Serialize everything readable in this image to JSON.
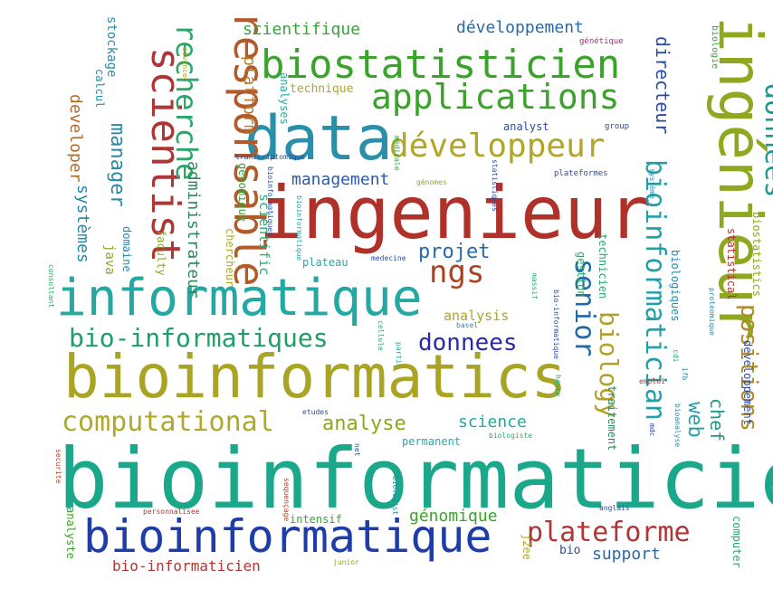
{
  "words": [
    {
      "id": "bioinformaticien",
      "text": "bioinformaticien",
      "color": "#1ba88a"
    },
    {
      "id": "bioinformatics",
      "text": "bioinformatics",
      "color": "#a9a424"
    },
    {
      "id": "ingenieur",
      "text": "ingenieur",
      "color": "#b0312a"
    },
    {
      "id": "ingenieur-accent",
      "text": "ingénieur",
      "color": "#8ea91f"
    },
    {
      "id": "informatique",
      "text": "informatique",
      "color": "#24a8a2"
    },
    {
      "id": "bioinformatique",
      "text": "bioinformatique",
      "color": "#1f3da8"
    },
    {
      "id": "data",
      "text": "data",
      "color": "#2a8fa8"
    },
    {
      "id": "biostatisticien",
      "text": "biostatisticien",
      "color": "#3aa32a"
    },
    {
      "id": "responsable",
      "text": "responsable",
      "color": "#b45a2a"
    },
    {
      "id": "scientist",
      "text": "scientist",
      "color": "#b03535"
    },
    {
      "id": "applications",
      "text": "applications",
      "color": "#3aa32a"
    },
    {
      "id": "developpeur",
      "text": "développeur",
      "color": "#b1a628"
    },
    {
      "id": "bio-informatiques",
      "text": "bio-informatiques",
      "color": "#1f9e6a"
    },
    {
      "id": "computational",
      "text": "computational",
      "color": "#b0a82a"
    },
    {
      "id": "plateforme",
      "text": "plateforme",
      "color": "#b03535"
    },
    {
      "id": "recherche",
      "text": "recherche",
      "color": "#2aa86a"
    },
    {
      "id": "donnees-accent",
      "text": "données",
      "color": "#1a9a8a"
    },
    {
      "id": "bioinformatician",
      "text": "bioinformatician",
      "color": "#22a0a8"
    },
    {
      "id": "ngs",
      "text": "ngs",
      "color": "#b04020"
    },
    {
      "id": "biology",
      "text": "biology",
      "color": "#b2a02a"
    },
    {
      "id": "senior",
      "text": "senior",
      "color": "#1f6aa8"
    },
    {
      "id": "donnees",
      "text": "donnees",
      "color": "#2a2aa8"
    },
    {
      "id": "projet",
      "text": "projet",
      "color": "#2a6aa8"
    },
    {
      "id": "positions",
      "text": "positions",
      "color": "#b08a2a"
    },
    {
      "id": "analyse",
      "text": "analyse",
      "color": "#8aa81f"
    },
    {
      "id": "manager",
      "text": "manager",
      "color": "#2a8aa8"
    },
    {
      "id": "web",
      "text": "web",
      "color": "#24a0a8"
    },
    {
      "id": "science",
      "text": "science",
      "color": "#1fa8a8"
    },
    {
      "id": "management",
      "text": "management",
      "color": "#2a5aa8"
    },
    {
      "id": "scientifique",
      "text": "scientifique",
      "color": "#3aa33a"
    },
    {
      "id": "developpement-accent",
      "text": "développement",
      "color": "#2a6aa8"
    },
    {
      "id": "directeur",
      "text": "directeur",
      "color": "#2a4aa8"
    },
    {
      "id": "chef",
      "text": "chef",
      "color": "#1f9a8a"
    },
    {
      "id": "developer",
      "text": "developer",
      "color": "#b06a2a"
    },
    {
      "id": "systemes",
      "text": "systèmes",
      "color": "#1f8aa8"
    },
    {
      "id": "administrateur",
      "text": "administrateur",
      "color": "#2a8a5a"
    },
    {
      "id": "platform",
      "text": "platform",
      "color": "#b07a2a"
    },
    {
      "id": "genomique",
      "text": "génomique",
      "color": "#3aa32a"
    },
    {
      "id": "support",
      "text": "support",
      "color": "#2a6aa8"
    },
    {
      "id": "bio-informaticien",
      "text": "bio-informaticien",
      "color": "#b03535"
    },
    {
      "id": "analysis",
      "text": "analysis",
      "color": "#a8a82a"
    },
    {
      "id": "scientific",
      "text": "scientific",
      "color": "#2aa86a"
    },
    {
      "id": "java",
      "text": "java",
      "color": "#8aa82a"
    },
    {
      "id": "stockage",
      "text": "stockage",
      "color": "#2a8aa8"
    },
    {
      "id": "calcul",
      "text": "calcul",
      "color": "#2a8aa8"
    },
    {
      "id": "domaine",
      "text": "domaine",
      "color": "#2a8aa8"
    },
    {
      "id": "faculty",
      "text": "faculty",
      "color": "#8aa82a"
    },
    {
      "id": "chercheur",
      "text": "chercheur",
      "color": "#a8a82a"
    },
    {
      "id": "genomique-plain",
      "text": "genomique",
      "color": "#3aa33a"
    },
    {
      "id": "analyses",
      "text": "analyses",
      "color": "#2aa8a8"
    },
    {
      "id": "technique",
      "text": "technique",
      "color": "#a8a82a"
    },
    {
      "id": "analyst",
      "text": "analyst",
      "color": "#2a4aa8"
    },
    {
      "id": "plateau",
      "text": "plateau",
      "color": "#2aa8a8"
    },
    {
      "id": "gestion",
      "text": "gestion",
      "color": "#2aa86a"
    },
    {
      "id": "technicien",
      "text": "technicien",
      "color": "#2aa86a"
    },
    {
      "id": "statistical",
      "text": "statistical",
      "color": "#b03535"
    },
    {
      "id": "biostatistics",
      "text": "biostatistics",
      "color": "#8aa82a"
    },
    {
      "id": "biologies",
      "text": "biologiques",
      "color": "#2a8aa8"
    },
    {
      "id": "traitement",
      "text": "traitement",
      "color": "#2a8a5a"
    },
    {
      "id": "developpement",
      "text": "developpement",
      "color": "#2a4aa8"
    },
    {
      "id": "permanent",
      "text": "permanent",
      "color": "#2aa8a8"
    },
    {
      "id": "intensif",
      "text": "intensif",
      "color": "#3aa33a"
    },
    {
      "id": "j2ee",
      "text": "j2ee",
      "color": "#a8a82a"
    },
    {
      "id": "bio",
      "text": "bio",
      "color": "#2a4aa8"
    },
    {
      "id": "computer",
      "text": "computer",
      "color": "#2aa86a"
    },
    {
      "id": "analyste",
      "text": "analyste",
      "color": "#3aa32a"
    },
    {
      "id": "biologie",
      "text": "biologie",
      "color": "#3aa33a"
    },
    {
      "id": "group",
      "text": "group",
      "color": "#2a4aa8"
    },
    {
      "id": "genetique",
      "text": "génétique",
      "color": "#a82a8a"
    },
    {
      "id": "advanced",
      "text": "advanced",
      "color": "#a8a82a"
    },
    {
      "id": "medicale",
      "text": "médicale",
      "color": "#3aa33a"
    },
    {
      "id": "plateformes",
      "text": "plateformes",
      "color": "#2a4aa8"
    },
    {
      "id": "genomes",
      "text": "génomes",
      "color": "#8aa82a"
    },
    {
      "id": "statistiques",
      "text": "statistiques",
      "color": "#2a4aa8"
    },
    {
      "id": "transcriptomique",
      "text": "transcriptomique",
      "color": "#2a4aa8"
    },
    {
      "id": "bioinformatiques",
      "text": "bioinformatiques",
      "color": "#2a4aa8"
    },
    {
      "id": "bioinformatique-small",
      "text": "bioinformatique",
      "color": "#2aa8a8"
    },
    {
      "id": "systeme",
      "text": "système",
      "color": "#2a8aa8"
    },
    {
      "id": "medecine",
      "text": "medecine",
      "color": "#2a4aa8"
    },
    {
      "id": "consultant",
      "text": "consultant",
      "color": "#2aa86a"
    },
    {
      "id": "massif",
      "text": "massif",
      "color": "#2aa86a"
    },
    {
      "id": "basel",
      "text": "basel",
      "color": "#2a8aa8"
    },
    {
      "id": "cellule",
      "text": "cellule",
      "color": "#2aa86a"
    },
    {
      "id": "partir",
      "text": "partir",
      "color": "#2aa8a8"
    },
    {
      "id": "bio-informatique",
      "text": "bio-informatique",
      "color": "#2a4aa8"
    },
    {
      "id": "proteomique",
      "text": "proteomique",
      "color": "#2a8aa8"
    },
    {
      "id": "cdi",
      "text": "cdi",
      "color": "#2aa86a"
    },
    {
      "id": "ifb",
      "text": "ifb",
      "color": "#2a8aa8"
    },
    {
      "id": "haute",
      "text": "haute",
      "color": "#2aa86a"
    },
    {
      "id": "emploi",
      "text": "emploi",
      "color": "#b03535"
    },
    {
      "id": "bioanalyse",
      "text": "bioanalyse",
      "color": "#2a8aa8"
    },
    {
      "id": "mdc",
      "text": "mdc",
      "color": "#2a4aa8"
    },
    {
      "id": "etudes",
      "text": "etudes",
      "color": "#2a4aa8"
    },
    {
      "id": "biologiste",
      "text": "biologiste",
      "color": "#2aa86a"
    },
    {
      "id": "securite",
      "text": "securite",
      "color": "#b04020"
    },
    {
      "id": "net",
      "text": "net",
      "color": "#2a4aa8"
    },
    {
      "id": "sequencage",
      "text": "sequençage",
      "color": "#b04020"
    },
    {
      "id": "biologist",
      "text": "biologist",
      "color": "#2a8aa8"
    },
    {
      "id": "personnalisee",
      "text": "personnalisee",
      "color": "#b03535"
    },
    {
      "id": "anglais",
      "text": "anglais",
      "color": "#2a4aa8"
    },
    {
      "id": "junior",
      "text": "junior",
      "color": "#8aa82a"
    }
  ]
}
